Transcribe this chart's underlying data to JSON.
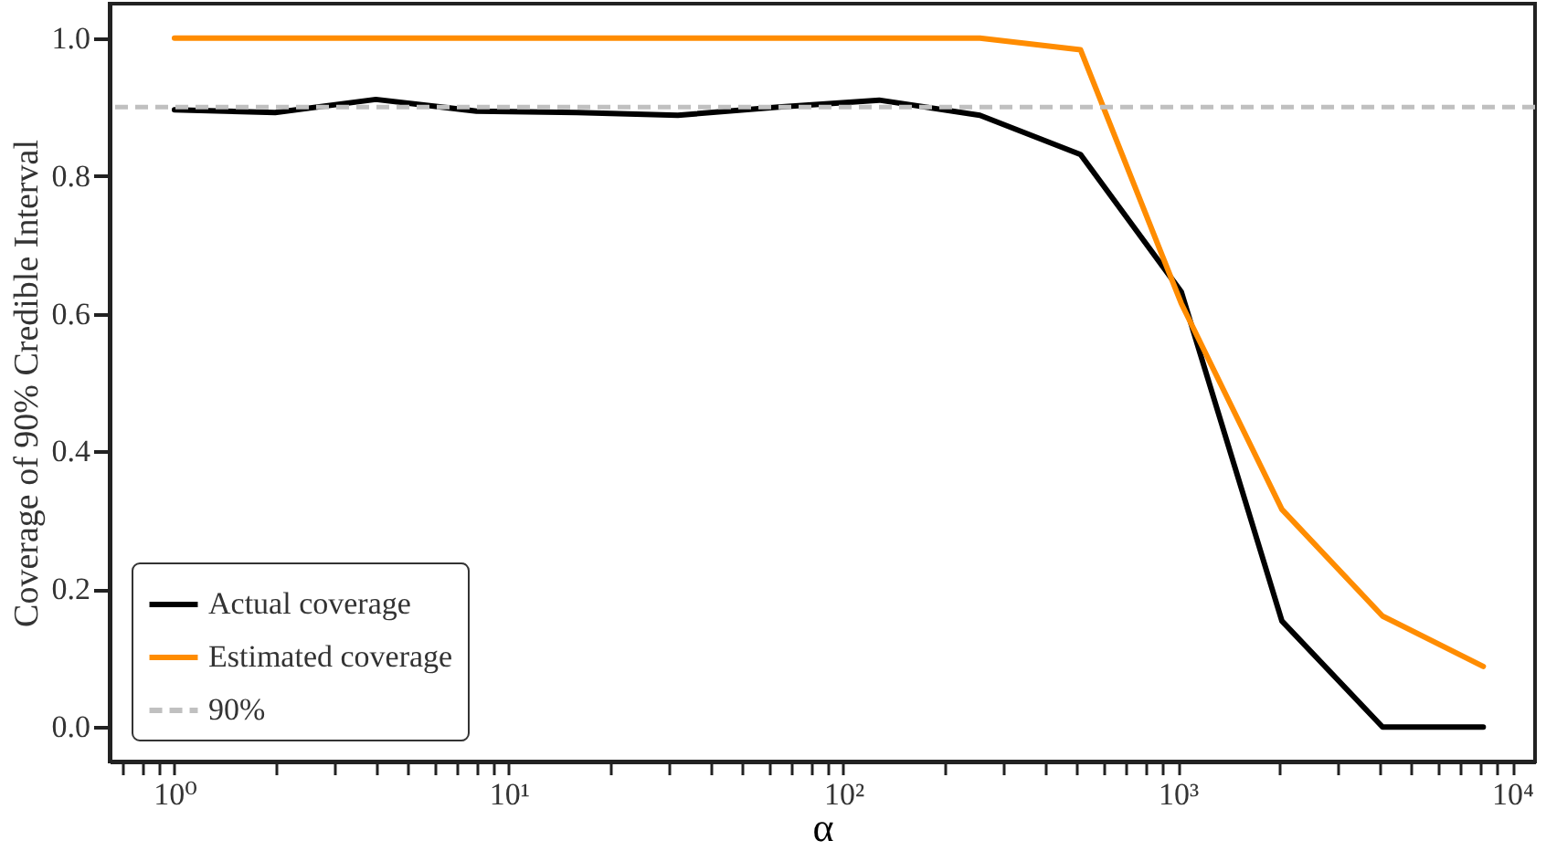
{
  "chart_data": {
    "type": "line",
    "xlabel": "α",
    "ylabel": "Coverage of 90% Credible Interval",
    "x": [
      1,
      2,
      4,
      8,
      16,
      32,
      64,
      128,
      256,
      512,
      1024,
      2048,
      4096,
      8192
    ],
    "series": [
      {
        "name": "Actual coverage",
        "color": "#000000",
        "values": [
          0.896,
          0.892,
          0.911,
          0.894,
          0.892,
          0.888,
          0.9,
          0.91,
          0.888,
          0.831,
          0.632,
          0.154,
          0,
          0
        ]
      },
      {
        "name": "Estimated coverage",
        "color": "#ff8c00",
        "values": [
          1,
          1,
          1,
          1,
          1,
          1,
          1,
          1,
          1,
          0.983,
          0.615,
          0.316,
          0.161,
          0.088
        ]
      }
    ],
    "ref_lines": [
      {
        "axis": "y",
        "value": 0.9,
        "label": "90%",
        "color": "#c0c0c0",
        "line_style": "dashed"
      }
    ],
    "log": "x",
    "xlim": [
      0.64,
      11700
    ],
    "ylim": [
      -0.05,
      1.05
    ],
    "xticks": [
      {
        "value": 0.7,
        "label": null
      },
      {
        "value": 0.8,
        "label": null
      },
      {
        "value": 0.9,
        "label": null
      },
      {
        "value": 1,
        "label": "10⁰"
      },
      {
        "value": 2,
        "label": null
      },
      {
        "value": 3,
        "label": null
      },
      {
        "value": 4,
        "label": null
      },
      {
        "value": 5,
        "label": null
      },
      {
        "value": 6,
        "label": null
      },
      {
        "value": 7,
        "label": null
      },
      {
        "value": 8,
        "label": null
      },
      {
        "value": 9,
        "label": null
      },
      {
        "value": 10,
        "label": "10¹"
      },
      {
        "value": 20,
        "label": null
      },
      {
        "value": 30,
        "label": null
      },
      {
        "value": 40,
        "label": null
      },
      {
        "value": 50,
        "label": null
      },
      {
        "value": 60,
        "label": null
      },
      {
        "value": 70,
        "label": null
      },
      {
        "value": 80,
        "label": null
      },
      {
        "value": 90,
        "label": null
      },
      {
        "value": 100,
        "label": "10²"
      },
      {
        "value": 200,
        "label": null
      },
      {
        "value": 300,
        "label": null
      },
      {
        "value": 400,
        "label": null
      },
      {
        "value": 500,
        "label": null
      },
      {
        "value": 600,
        "label": null
      },
      {
        "value": 700,
        "label": null
      },
      {
        "value": 800,
        "label": null
      },
      {
        "value": 900,
        "label": null
      },
      {
        "value": 1000,
        "label": "10³"
      },
      {
        "value": 2000,
        "label": null
      },
      {
        "value": 3000,
        "label": null
      },
      {
        "value": 4000,
        "label": null
      },
      {
        "value": 5000,
        "label": null
      },
      {
        "value": 6000,
        "label": null
      },
      {
        "value": 7000,
        "label": null
      },
      {
        "value": 8000,
        "label": null
      },
      {
        "value": 9000,
        "label": null
      },
      {
        "value": 10000,
        "label": "10⁴"
      }
    ],
    "yticks": [
      {
        "value": 0,
        "label": "0.0"
      },
      {
        "value": 0.2,
        "label": "0.2"
      },
      {
        "value": 0.4,
        "label": "0.4"
      },
      {
        "value": 0.6,
        "label": "0.6"
      },
      {
        "value": 0.8,
        "label": "0.8"
      },
      {
        "value": 1,
        "label": "1.0"
      }
    ],
    "legend": "bottom left",
    "grid": false,
    "line_style": "solid"
  }
}
